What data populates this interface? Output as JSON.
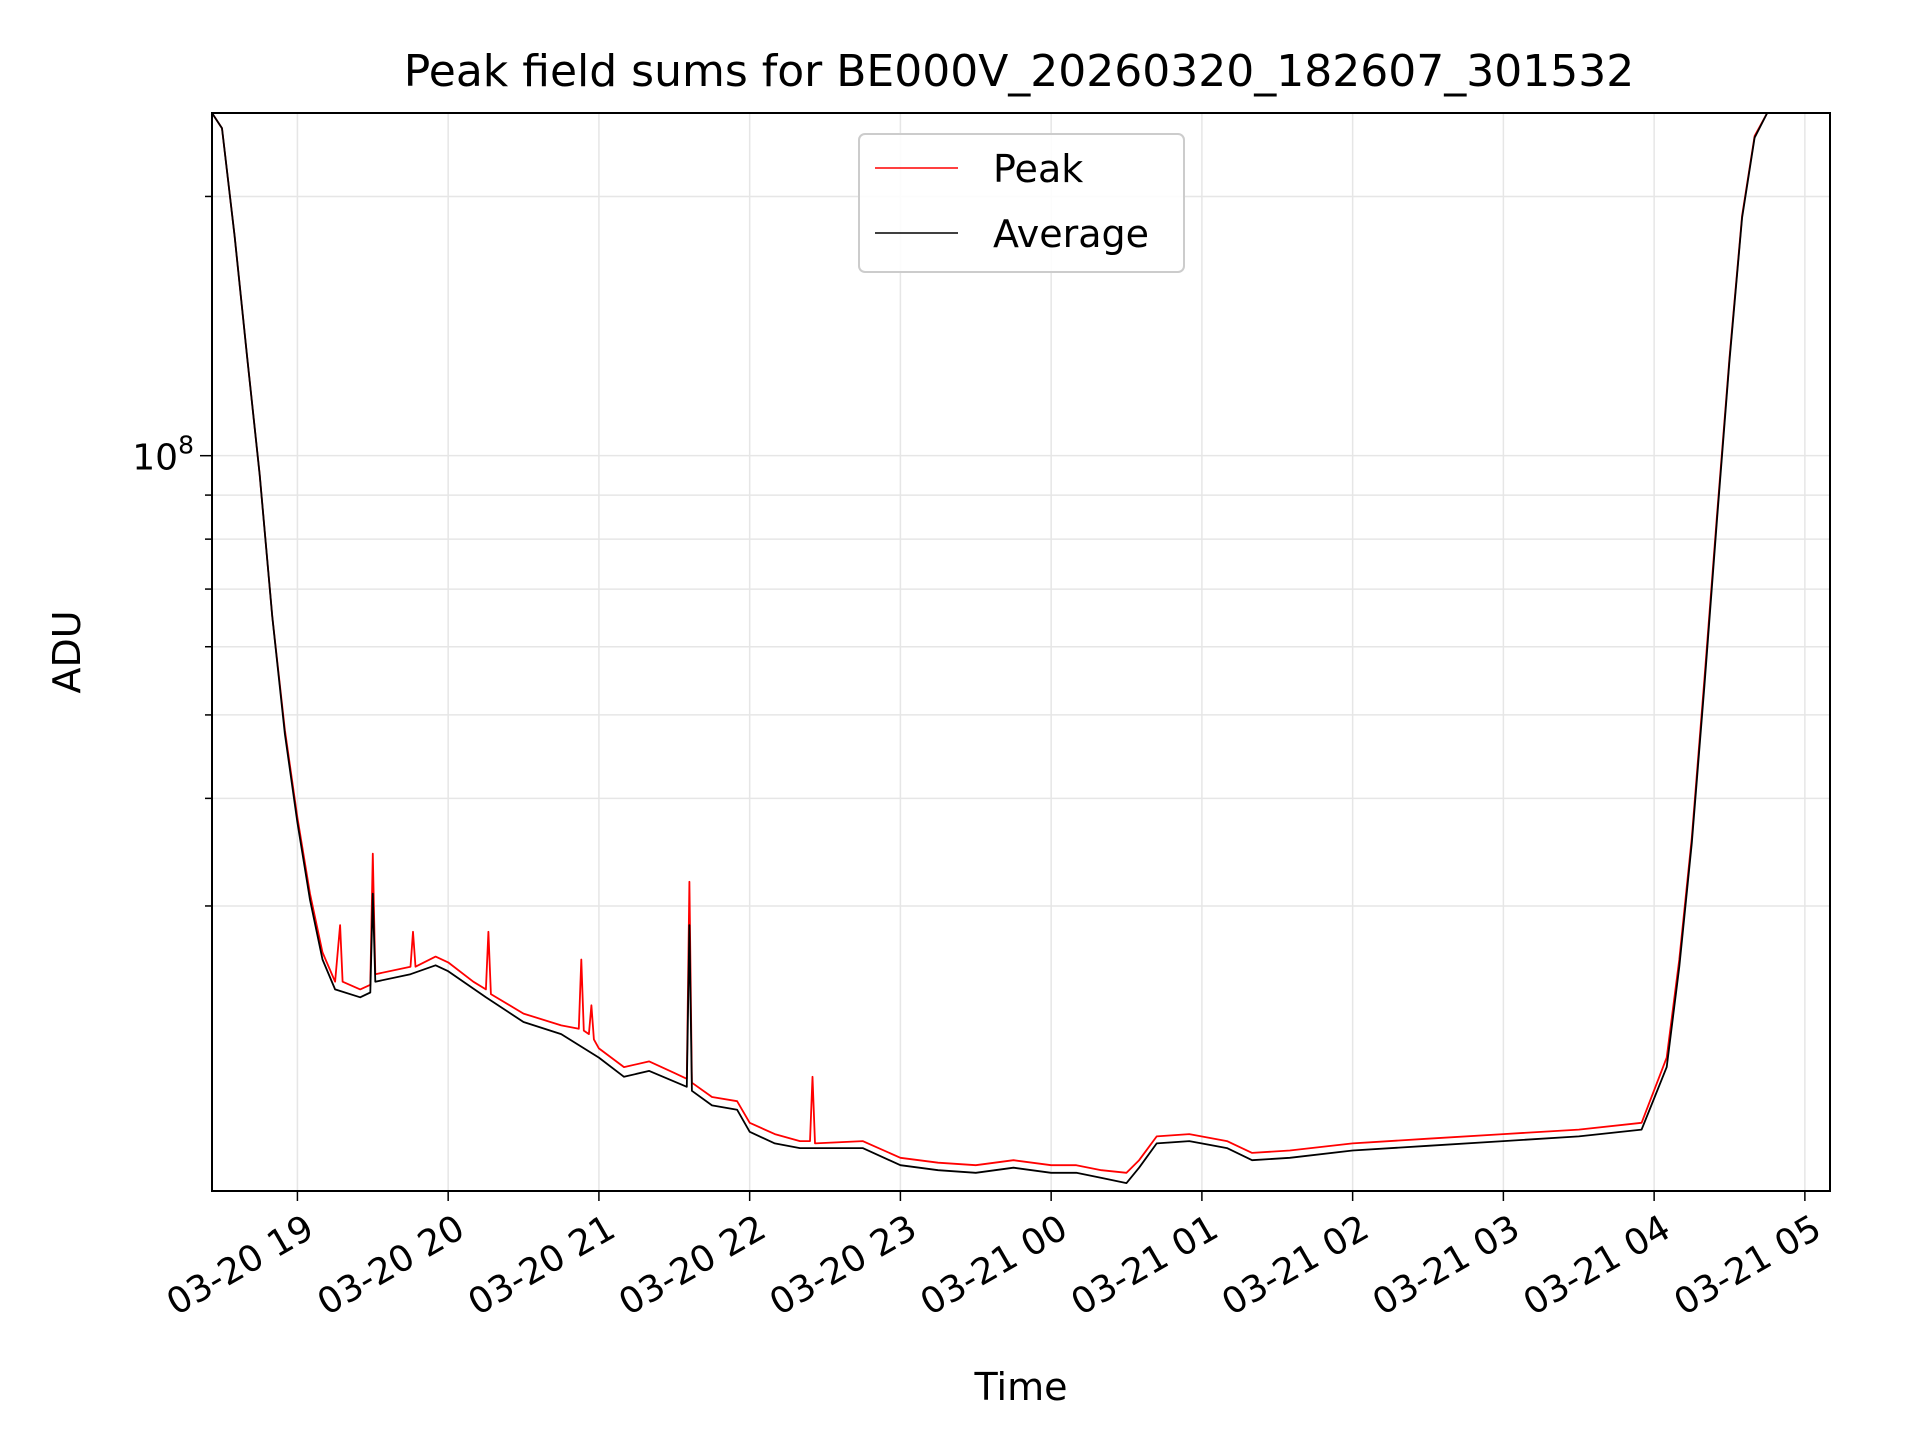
{
  "chart_data": {
    "type": "line",
    "title": "Peak field sums for BE000V_20260320_182607_301532",
    "xlabel": "Time",
    "ylabel": "ADU",
    "y_scale": "log",
    "y_ticks": [
      {
        "value": 100000000,
        "label": "10",
        "exponent": "8"
      }
    ],
    "y_minor_ticks": [
      30000000,
      40000000,
      50000000,
      60000000,
      70000000,
      80000000,
      90000000,
      200000000
    ],
    "ylim": [
      14000000,
      250000000
    ],
    "xlim": [
      "2026-03-20 18:26",
      "2026-03-21 05:10"
    ],
    "x_ticks": [
      {
        "value": "2026-03-20 19:00",
        "label": "03-20 19"
      },
      {
        "value": "2026-03-20 20:00",
        "label": "03-20 20"
      },
      {
        "value": "2026-03-20 21:00",
        "label": "03-20 21"
      },
      {
        "value": "2026-03-20 22:00",
        "label": "03-20 22"
      },
      {
        "value": "2026-03-20 23:00",
        "label": "03-20 23"
      },
      {
        "value": "2026-03-21 00:00",
        "label": "03-21 00"
      },
      {
        "value": "2026-03-21 01:00",
        "label": "03-21 01"
      },
      {
        "value": "2026-03-21 02:00",
        "label": "03-21 02"
      },
      {
        "value": "2026-03-21 03:00",
        "label": "03-21 03"
      },
      {
        "value": "2026-03-21 04:00",
        "label": "03-21 04"
      },
      {
        "value": "2026-03-21 05:00",
        "label": "03-21 05"
      }
    ],
    "grid": true,
    "legend_position": "upper center",
    "series": [
      {
        "name": "Peak",
        "color": "#ff0000",
        "points": [
          [
            "2026-03-20 18:26",
            250000000
          ],
          [
            "2026-03-20 18:30",
            240000000
          ],
          [
            "2026-03-20 18:35",
            180000000
          ],
          [
            "2026-03-20 18:40",
            130000000
          ],
          [
            "2026-03-20 18:45",
            95000000
          ],
          [
            "2026-03-20 18:50",
            65000000
          ],
          [
            "2026-03-20 18:55",
            48000000
          ],
          [
            "2026-03-20 19:00",
            38000000
          ],
          [
            "2026-03-20 19:05",
            31000000
          ],
          [
            "2026-03-20 19:10",
            26500000
          ],
          [
            "2026-03-20 19:15",
            24500000
          ],
          [
            "2026-03-20 19:17",
            28500000
          ],
          [
            "2026-03-20 19:18",
            24500000
          ],
          [
            "2026-03-20 19:25",
            24000000
          ],
          [
            "2026-03-20 19:29",
            24300000
          ],
          [
            "2026-03-20 19:30",
            34500000
          ],
          [
            "2026-03-20 19:31",
            25000000
          ],
          [
            "2026-03-20 19:45",
            25500000
          ],
          [
            "2026-03-20 19:46",
            28000000
          ],
          [
            "2026-03-20 19:47",
            25500000
          ],
          [
            "2026-03-20 19:55",
            26200000
          ],
          [
            "2026-03-20 20:00",
            25800000
          ],
          [
            "2026-03-20 20:10",
            24500000
          ],
          [
            "2026-03-20 20:15",
            24000000
          ],
          [
            "2026-03-20 20:16",
            28000000
          ],
          [
            "2026-03-20 20:17",
            23700000
          ],
          [
            "2026-03-20 20:30",
            22500000
          ],
          [
            "2026-03-20 20:45",
            21800000
          ],
          [
            "2026-03-20 20:52",
            21600000
          ],
          [
            "2026-03-20 20:53",
            26000000
          ],
          [
            "2026-03-20 20:54",
            21500000
          ],
          [
            "2026-03-20 20:56",
            21300000
          ],
          [
            "2026-03-20 20:57",
            23000000
          ],
          [
            "2026-03-20 20:58",
            21000000
          ],
          [
            "2026-03-20 21:00",
            20500000
          ],
          [
            "2026-03-20 21:10",
            19500000
          ],
          [
            "2026-03-20 21:20",
            19800000
          ],
          [
            "2026-03-20 21:30",
            19200000
          ],
          [
            "2026-03-20 21:35",
            18900000
          ],
          [
            "2026-03-20 21:36",
            32000000
          ],
          [
            "2026-03-20 21:37",
            18700000
          ],
          [
            "2026-03-20 21:45",
            18000000
          ],
          [
            "2026-03-20 21:55",
            17800000
          ],
          [
            "2026-03-20 22:00",
            16800000
          ],
          [
            "2026-03-20 22:10",
            16300000
          ],
          [
            "2026-03-20 22:20",
            16000000
          ],
          [
            "2026-03-20 22:24",
            16000000
          ],
          [
            "2026-03-20 22:25",
            19000000
          ],
          [
            "2026-03-20 22:26",
            15900000
          ],
          [
            "2026-03-20 22:45",
            16000000
          ],
          [
            "2026-03-20 23:00",
            15300000
          ],
          [
            "2026-03-20 23:15",
            15100000
          ],
          [
            "2026-03-20 23:30",
            15000000
          ],
          [
            "2026-03-20 23:45",
            15200000
          ],
          [
            "2026-03-21 00:00",
            15000000
          ],
          [
            "2026-03-21 00:10",
            15000000
          ],
          [
            "2026-03-21 00:20",
            14800000
          ],
          [
            "2026-03-21 00:30",
            14700000
          ],
          [
            "2026-03-21 00:35",
            15200000
          ],
          [
            "2026-03-21 00:42",
            16200000
          ],
          [
            "2026-03-21 00:55",
            16300000
          ],
          [
            "2026-03-21 01:10",
            16000000
          ],
          [
            "2026-03-21 01:20",
            15500000
          ],
          [
            "2026-03-21 01:35",
            15600000
          ],
          [
            "2026-03-21 02:00",
            15900000
          ],
          [
            "2026-03-21 02:30",
            16100000
          ],
          [
            "2026-03-21 03:00",
            16300000
          ],
          [
            "2026-03-21 03:30",
            16500000
          ],
          [
            "2026-03-21 03:55",
            16800000
          ],
          [
            "2026-03-21 04:05",
            20000000
          ],
          [
            "2026-03-21 04:10",
            26000000
          ],
          [
            "2026-03-21 04:15",
            36000000
          ],
          [
            "2026-03-21 04:20",
            55000000
          ],
          [
            "2026-03-21 04:25",
            85000000
          ],
          [
            "2026-03-21 04:30",
            130000000
          ],
          [
            "2026-03-21 04:35",
            190000000
          ],
          [
            "2026-03-21 04:40",
            235000000
          ],
          [
            "2026-03-21 04:45",
            250000000
          ],
          [
            "2026-03-21 05:10",
            250000000
          ]
        ]
      },
      {
        "name": "Average",
        "color": "#000000",
        "points": [
          [
            "2026-03-20 18:26",
            250000000
          ],
          [
            "2026-03-20 18:30",
            240000000
          ],
          [
            "2026-03-20 18:35",
            180000000
          ],
          [
            "2026-03-20 18:40",
            130000000
          ],
          [
            "2026-03-20 18:45",
            95000000
          ],
          [
            "2026-03-20 18:50",
            65000000
          ],
          [
            "2026-03-20 18:55",
            47500000
          ],
          [
            "2026-03-20 19:00",
            37500000
          ],
          [
            "2026-03-20 19:05",
            30500000
          ],
          [
            "2026-03-20 19:10",
            26000000
          ],
          [
            "2026-03-20 19:15",
            24000000
          ],
          [
            "2026-03-20 19:25",
            23500000
          ],
          [
            "2026-03-20 19:29",
            23800000
          ],
          [
            "2026-03-20 19:30",
            31000000
          ],
          [
            "2026-03-20 19:31",
            24500000
          ],
          [
            "2026-03-20 19:45",
            25000000
          ],
          [
            "2026-03-20 19:55",
            25600000
          ],
          [
            "2026-03-20 20:00",
            25200000
          ],
          [
            "2026-03-20 20:15",
            23500000
          ],
          [
            "2026-03-20 20:30",
            22000000
          ],
          [
            "2026-03-20 20:45",
            21300000
          ],
          [
            "2026-03-20 21:00",
            20000000
          ],
          [
            "2026-03-20 21:10",
            19000000
          ],
          [
            "2026-03-20 21:20",
            19300000
          ],
          [
            "2026-03-20 21:35",
            18500000
          ],
          [
            "2026-03-20 21:36",
            28500000
          ],
          [
            "2026-03-20 21:37",
            18300000
          ],
          [
            "2026-03-20 21:45",
            17600000
          ],
          [
            "2026-03-20 21:55",
            17400000
          ],
          [
            "2026-03-20 22:00",
            16400000
          ],
          [
            "2026-03-20 22:10",
            15900000
          ],
          [
            "2026-03-20 22:20",
            15700000
          ],
          [
            "2026-03-20 22:45",
            15700000
          ],
          [
            "2026-03-20 23:00",
            15000000
          ],
          [
            "2026-03-20 23:15",
            14800000
          ],
          [
            "2026-03-20 23:30",
            14700000
          ],
          [
            "2026-03-20 23:45",
            14900000
          ],
          [
            "2026-03-21 00:00",
            14700000
          ],
          [
            "2026-03-21 00:10",
            14700000
          ],
          [
            "2026-03-21 00:20",
            14500000
          ],
          [
            "2026-03-21 00:30",
            14300000
          ],
          [
            "2026-03-21 00:35",
            14900000
          ],
          [
            "2026-03-21 00:42",
            15900000
          ],
          [
            "2026-03-21 00:55",
            16000000
          ],
          [
            "2026-03-21 01:10",
            15700000
          ],
          [
            "2026-03-21 01:20",
            15200000
          ],
          [
            "2026-03-21 01:35",
            15300000
          ],
          [
            "2026-03-21 02:00",
            15600000
          ],
          [
            "2026-03-21 02:30",
            15800000
          ],
          [
            "2026-03-21 03:00",
            16000000
          ],
          [
            "2026-03-21 03:30",
            16200000
          ],
          [
            "2026-03-21 03:55",
            16500000
          ],
          [
            "2026-03-21 04:05",
            19500000
          ],
          [
            "2026-03-21 04:10",
            25500000
          ],
          [
            "2026-03-21 04:15",
            35500000
          ],
          [
            "2026-03-21 04:20",
            54000000
          ],
          [
            "2026-03-21 04:25",
            84000000
          ],
          [
            "2026-03-21 04:30",
            129000000
          ],
          [
            "2026-03-21 04:35",
            189000000
          ],
          [
            "2026-03-21 04:40",
            234000000
          ],
          [
            "2026-03-21 04:45",
            250000000
          ],
          [
            "2026-03-21 05:10",
            250000000
          ]
        ]
      }
    ]
  }
}
